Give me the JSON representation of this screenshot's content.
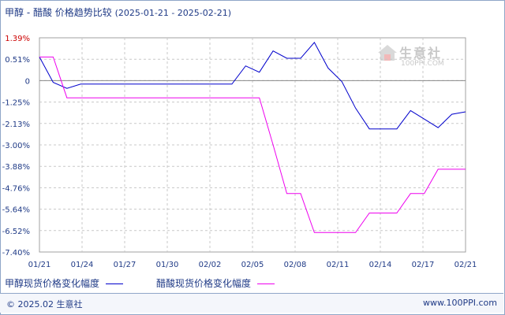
{
  "title": {
    "main": "甲醇 - 醋酸 价格趋势比较",
    "range": "(2025-01-21 - 2025-02-21)"
  },
  "watermark": {
    "logo_text": "生意社",
    "sub_text": "100PPI.COM"
  },
  "legend": {
    "series1_label": "甲醇现货价格变化幅度",
    "series2_label": "醋酸现货价格变化幅度"
  },
  "footer": {
    "copyright": "© 2025.02 生意社",
    "website": "www.100PPI.com"
  },
  "colors": {
    "series1": "#0000cc",
    "series2": "#ee00ee",
    "grid": "#c8c8c8",
    "axis_text": "#1f3a86",
    "y_top_label": "#cc0000"
  },
  "chart_data": {
    "type": "line",
    "title": "甲醇 - 醋酸 价格趋势比较",
    "xlabel": "",
    "ylabel": "",
    "x_ticks": [
      "01/21",
      "01/24",
      "01/27",
      "01/30",
      "02/02",
      "02/05",
      "02/08",
      "02/11",
      "02/14",
      "02/17",
      "02/21"
    ],
    "y_ticks": [
      "1.39%",
      "0.51%",
      "0",
      "-1.25%",
      "-2.13%",
      "-3.00%",
      "-3.88%",
      "-4.76%",
      "-5.64%",
      "-6.52%",
      "-7.40%"
    ],
    "ylim": [
      -7.4,
      1.39
    ],
    "grid": true,
    "legend_position": "bottom",
    "series": [
      {
        "name": "甲醇现货价格变化幅度",
        "values": [
          [
            0,
            0.6
          ],
          [
            1,
            -0.1
          ],
          [
            2,
            -0.45
          ],
          [
            3,
            -0.2
          ],
          [
            4,
            -0.2
          ],
          [
            5,
            -0.2
          ],
          [
            6,
            -0.2
          ],
          [
            7,
            -0.2
          ],
          [
            8,
            -0.2
          ],
          [
            9,
            -0.2
          ],
          [
            10,
            -0.2
          ],
          [
            11,
            -0.2
          ],
          [
            12,
            -0.2
          ],
          [
            13,
            -0.2
          ],
          [
            14,
            -0.2
          ],
          [
            15,
            0.35
          ],
          [
            16,
            0.2
          ],
          [
            17,
            0.85
          ],
          [
            18,
            0.55
          ],
          [
            19,
            0.55
          ],
          [
            20,
            1.2
          ],
          [
            21,
            0.3
          ],
          [
            22,
            -0.05
          ],
          [
            23,
            -1.5
          ],
          [
            24,
            -2.35
          ],
          [
            25,
            -2.35
          ],
          [
            26,
            -2.35
          ],
          [
            27,
            -1.6
          ],
          [
            28,
            -1.95
          ],
          [
            29,
            -2.3
          ],
          [
            30,
            -1.75
          ],
          [
            31,
            -1.65
          ]
        ]
      },
      {
        "name": "醋酸现货价格变化幅度",
        "values": [
          [
            0,
            0.6
          ],
          [
            1,
            0.6
          ],
          [
            2,
            -1.0
          ],
          [
            3,
            -1.0
          ],
          [
            4,
            -1.0
          ],
          [
            5,
            -1.0
          ],
          [
            6,
            -1.0
          ],
          [
            7,
            -1.0
          ],
          [
            8,
            -1.0
          ],
          [
            9,
            -1.0
          ],
          [
            10,
            -1.0
          ],
          [
            11,
            -1.0
          ],
          [
            12,
            -1.0
          ],
          [
            13,
            -1.0
          ],
          [
            14,
            -1.0
          ],
          [
            15,
            -1.0
          ],
          [
            16,
            -1.0
          ],
          [
            17,
            -3.0
          ],
          [
            18,
            -5.0
          ],
          [
            19,
            -5.0
          ],
          [
            20,
            -6.6
          ],
          [
            21,
            -6.6
          ],
          [
            22,
            -6.6
          ],
          [
            23,
            -6.6
          ],
          [
            24,
            -5.8
          ],
          [
            25,
            -5.8
          ],
          [
            26,
            -5.8
          ],
          [
            27,
            -5.0
          ],
          [
            28,
            -5.0
          ],
          [
            29,
            -4.0
          ],
          [
            30,
            -4.0
          ],
          [
            31,
            -4.0
          ]
        ]
      }
    ]
  }
}
